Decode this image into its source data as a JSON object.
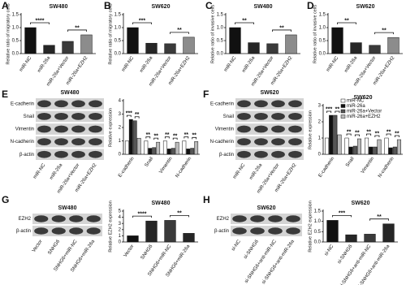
{
  "chart_data": [
    {
      "type": "bar",
      "letter": "A",
      "title": "SW480",
      "y_label": "Relative ratio of migratory cells",
      "categories": [
        "miR-NC",
        "miR-26a",
        "miR-26a+Vector",
        "miR-26a+EZH2"
      ],
      "values": [
        1.0,
        0.32,
        0.47,
        0.72
      ],
      "colors": [
        "#111111",
        "#262626",
        "#3a3a3a",
        "#8c8c8c"
      ],
      "ylim": [
        0,
        1.5
      ],
      "yticks": [
        {
          "value": 0,
          "label": "0.0"
        },
        {
          "value": 0.5,
          "label": "0.5"
        },
        {
          "value": 1,
          "label": "1.0"
        },
        {
          "value": 1.5,
          "label": "1.5"
        }
      ],
      "annotations": [
        "****",
        "**"
      ]
    },
    {
      "type": "bar",
      "letter": "B",
      "title": "SW620",
      "y_label": "Relative ratio of migratory cells",
      "categories": [
        "miR-NC",
        "miR-26a",
        "miR-26a+Vector",
        "miR-26a+EZH2"
      ],
      "values": [
        1.0,
        0.4,
        0.38,
        0.63
      ],
      "colors": [
        "#111111",
        "#262626",
        "#3a3a3a",
        "#8c8c8c"
      ],
      "ylim": [
        0,
        1.5
      ],
      "yticks": [
        {
          "value": 0,
          "label": "0.0"
        },
        {
          "value": 0.5,
          "label": "0.5"
        },
        {
          "value": 1,
          "label": "1.0"
        },
        {
          "value": 1.5,
          "label": "1.5"
        }
      ],
      "annotations": [
        "***",
        "**"
      ]
    },
    {
      "type": "bar",
      "letter": "C",
      "title": "SW480",
      "y_label": "Relative ratio of invasive cells",
      "categories": [
        "miR-NC",
        "miR-26a",
        "miR-26a+Vector",
        "miR-26a+EZH2"
      ],
      "values": [
        1.0,
        0.42,
        0.38,
        0.72
      ],
      "colors": [
        "#111111",
        "#262626",
        "#3a3a3a",
        "#8c8c8c"
      ],
      "ylim": [
        0,
        1.5
      ],
      "yticks": [
        {
          "value": 0,
          "label": "0.0"
        },
        {
          "value": 0.5,
          "label": "0.5"
        },
        {
          "value": 1,
          "label": "1.0"
        },
        {
          "value": 1.5,
          "label": "1.5"
        }
      ],
      "annotations": [
        "**",
        "**"
      ]
    },
    {
      "type": "bar",
      "letter": "D",
      "title": "SW620",
      "y_label": "Relative ratio of invasive cells",
      "categories": [
        "miR-NC",
        "miR-26a",
        "miR-26a+Vector",
        "miR-26a+EZH2"
      ],
      "values": [
        1.0,
        0.42,
        0.32,
        0.62
      ],
      "colors": [
        "#111111",
        "#262626",
        "#3a3a3a",
        "#8c8c8c"
      ],
      "ylim": [
        0,
        1.5
      ],
      "yticks": [
        {
          "value": 0,
          "label": "0.0"
        },
        {
          "value": 0.5,
          "label": "0.5"
        },
        {
          "value": 1,
          "label": "1.0"
        },
        {
          "value": 1.5,
          "label": "1.5"
        }
      ],
      "annotations": [
        "**",
        "**"
      ]
    },
    {
      "type": "grouped_bar",
      "y_label": "Relative expression",
      "categories": [
        "E-cadherin",
        "Snail",
        "Vimentin",
        "N-cadherin"
      ],
      "series": [
        {
          "name": "miR-NC",
          "color": "#ffffff",
          "values": [
            1.0,
            1.0,
            1.0,
            1.0
          ]
        },
        {
          "name": "miR-26a",
          "color": "#111111",
          "values": [
            2.6,
            0.45,
            0.4,
            0.4
          ]
        },
        {
          "name": "miR-26a+Vector",
          "color": "#555555",
          "values": [
            2.5,
            0.5,
            0.45,
            0.45
          ]
        },
        {
          "name": "miR-26a+EZH2",
          "color": "#bbbbbb",
          "values": [
            1.2,
            0.9,
            0.9,
            0.95
          ]
        }
      ],
      "ylim": [
        0,
        4
      ],
      "yticks": [
        0,
        1,
        2,
        3,
        4
      ],
      "annotations": [
        "***",
        "**",
        "**",
        "**",
        "**",
        "**",
        "**",
        "**"
      ]
    },
    {
      "type": "grouped_bar",
      "title": "SW620",
      "y_label": "Relative expression",
      "categories": [
        "E-cadherin",
        "Snail",
        "Vimentin",
        "N-cadherin"
      ],
      "series": [
        {
          "name": "miR-NC",
          "color": "#ffffff",
          "values": [
            1.0,
            1.0,
            1.0,
            1.0
          ]
        },
        {
          "name": "miR-26a",
          "color": "#111111",
          "values": [
            2.4,
            0.45,
            0.45,
            0.4
          ]
        },
        {
          "name": "miR-26a+Vector",
          "color": "#555555",
          "values": [
            2.4,
            0.5,
            0.45,
            0.45
          ]
        },
        {
          "name": "miR-26a+EZH2",
          "color": "#bbbbbb",
          "values": [
            1.2,
            0.95,
            0.9,
            0.9
          ]
        }
      ],
      "ylim": [
        0,
        3
      ],
      "yticks": [
        0,
        1,
        2,
        3
      ],
      "annotations": [
        "***",
        "**",
        "**",
        "**",
        "**",
        "**",
        "**",
        "**"
      ]
    },
    {
      "type": "bar",
      "title": "SW480",
      "y_label": "Relative EZH2 expression",
      "categories": [
        "Vector",
        "SNHG6",
        "SNHG6+miR-NC",
        "SNHG6+miR-26a"
      ],
      "values": [
        1.0,
        3.4,
        3.5,
        1.4
      ],
      "colors": [
        "#111111",
        "#262626",
        "#3a3a3a",
        "#262626"
      ],
      "ylim": [
        0,
        5
      ],
      "yticks": [
        0,
        1,
        2,
        3,
        4,
        5
      ],
      "annotations": [
        "****",
        "**"
      ]
    },
    {
      "type": "bar",
      "title": "SW620",
      "y_label": "Relative EZH2 expression",
      "categories": [
        "si-NC",
        "si-SNHG6",
        "si-SNHG6+anti-miR-NC",
        "si-SNHG6+anti-miR-26a"
      ],
      "values": [
        1.05,
        0.35,
        0.38,
        0.88
      ],
      "colors": [
        "#111111",
        "#262626",
        "#3a3a3a",
        "#262626"
      ],
      "ylim": [
        0,
        1.5
      ],
      "yticks": [
        {
          "value": 0,
          "label": "0.0"
        },
        {
          "value": 0.5,
          "label": "0.5"
        },
        {
          "value": 1,
          "label": "1.0"
        },
        {
          "value": 1.5,
          "label": "1.5"
        }
      ],
      "annotations": [
        "***",
        "**"
      ]
    }
  ],
  "blots": [
    {
      "letter": "E",
      "title": "SW480",
      "rows": [
        "E-cadherin",
        "Snail",
        "Vimentin",
        "N-cadherin",
        "β-actin"
      ],
      "lanes": [
        "miR-NC",
        "miR-26a",
        "miR-26a+Vector",
        "miR-26a+EZH2"
      ]
    },
    {
      "letter": "F",
      "title": "SW620",
      "rows": [
        "E-cadherin",
        "Snail",
        "Vimentin",
        "N-cadherin",
        "β-actin"
      ],
      "lanes": [
        "miR-NC",
        "miR-26a",
        "miR-26a+Vector",
        "miR-26a+EZH2"
      ]
    },
    {
      "letter": "G",
      "title": "SW480",
      "rows": [
        "EZH2",
        "β-actin"
      ],
      "lanes": [
        "Vector",
        "SNHG6",
        "SNHG6+miR-NC",
        "SNHG6+miR-26a"
      ]
    },
    {
      "letter": "H",
      "title": "SW620",
      "rows": [
        "EZH2",
        "β-actin"
      ],
      "lanes": [
        "si-NC",
        "si-SNHG6",
        "si-SNHG6+anti-miR-NC",
        "si-SNHG6+anti-miR-26a"
      ]
    }
  ]
}
